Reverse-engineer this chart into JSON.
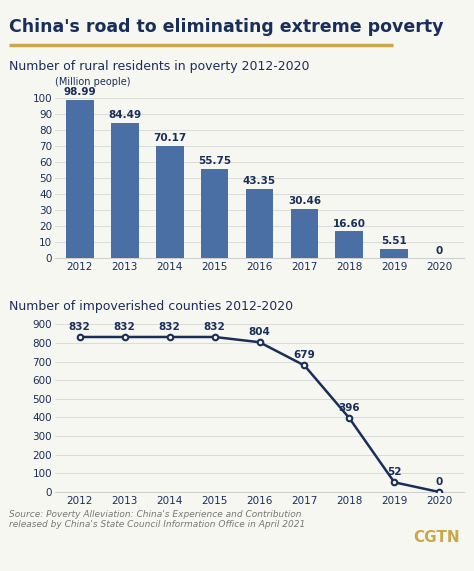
{
  "title": "China's road to eliminating extreme poverty",
  "title_color": "#1a2e5a",
  "title_underline_color": "#c9a84c",
  "bg_color": "#f7f7f2",
  "bar_subtitle": "Number of rural residents in poverty 2012-2020",
  "bar_ylabel": "(Million people)",
  "bar_years": [
    2012,
    2013,
    2014,
    2015,
    2016,
    2017,
    2018,
    2019,
    2020
  ],
  "bar_values": [
    98.99,
    84.49,
    70.17,
    55.75,
    43.35,
    30.46,
    16.6,
    5.51,
    0
  ],
  "bar_labels": [
    "98.99",
    "84.49",
    "70.17",
    "55.75",
    "43.35",
    "30.46",
    "16.60",
    "5.51",
    "0"
  ],
  "bar_color": "#4a6fa5",
  "bar_ylim": [
    0,
    105
  ],
  "bar_yticks": [
    0,
    10,
    20,
    30,
    40,
    50,
    60,
    70,
    80,
    90,
    100
  ],
  "line_subtitle": "Number of impoverished counties 2012-2020",
  "line_years": [
    2012,
    2013,
    2014,
    2015,
    2016,
    2017,
    2018,
    2019,
    2020
  ],
  "line_values": [
    832,
    832,
    832,
    832,
    804,
    679,
    396,
    52,
    0
  ],
  "line_labels": [
    "832",
    "832",
    "832",
    "832",
    "804",
    "679",
    "396",
    "52",
    "0"
  ],
  "line_color": "#1a2e5a",
  "line_ylim": [
    0,
    950
  ],
  "line_yticks": [
    0,
    100,
    200,
    300,
    400,
    500,
    600,
    700,
    800,
    900
  ],
  "source_text": "Source: Poverty Alleviation: China's Experience and Contribution\nreleased by China's State Council Information Office in April 2021",
  "cgtn_color": "#c9a84c",
  "label_color": "#1a2e5a",
  "grid_color": "#d0d0d0",
  "tick_color": "#1a2e5a",
  "source_color": "#777777"
}
